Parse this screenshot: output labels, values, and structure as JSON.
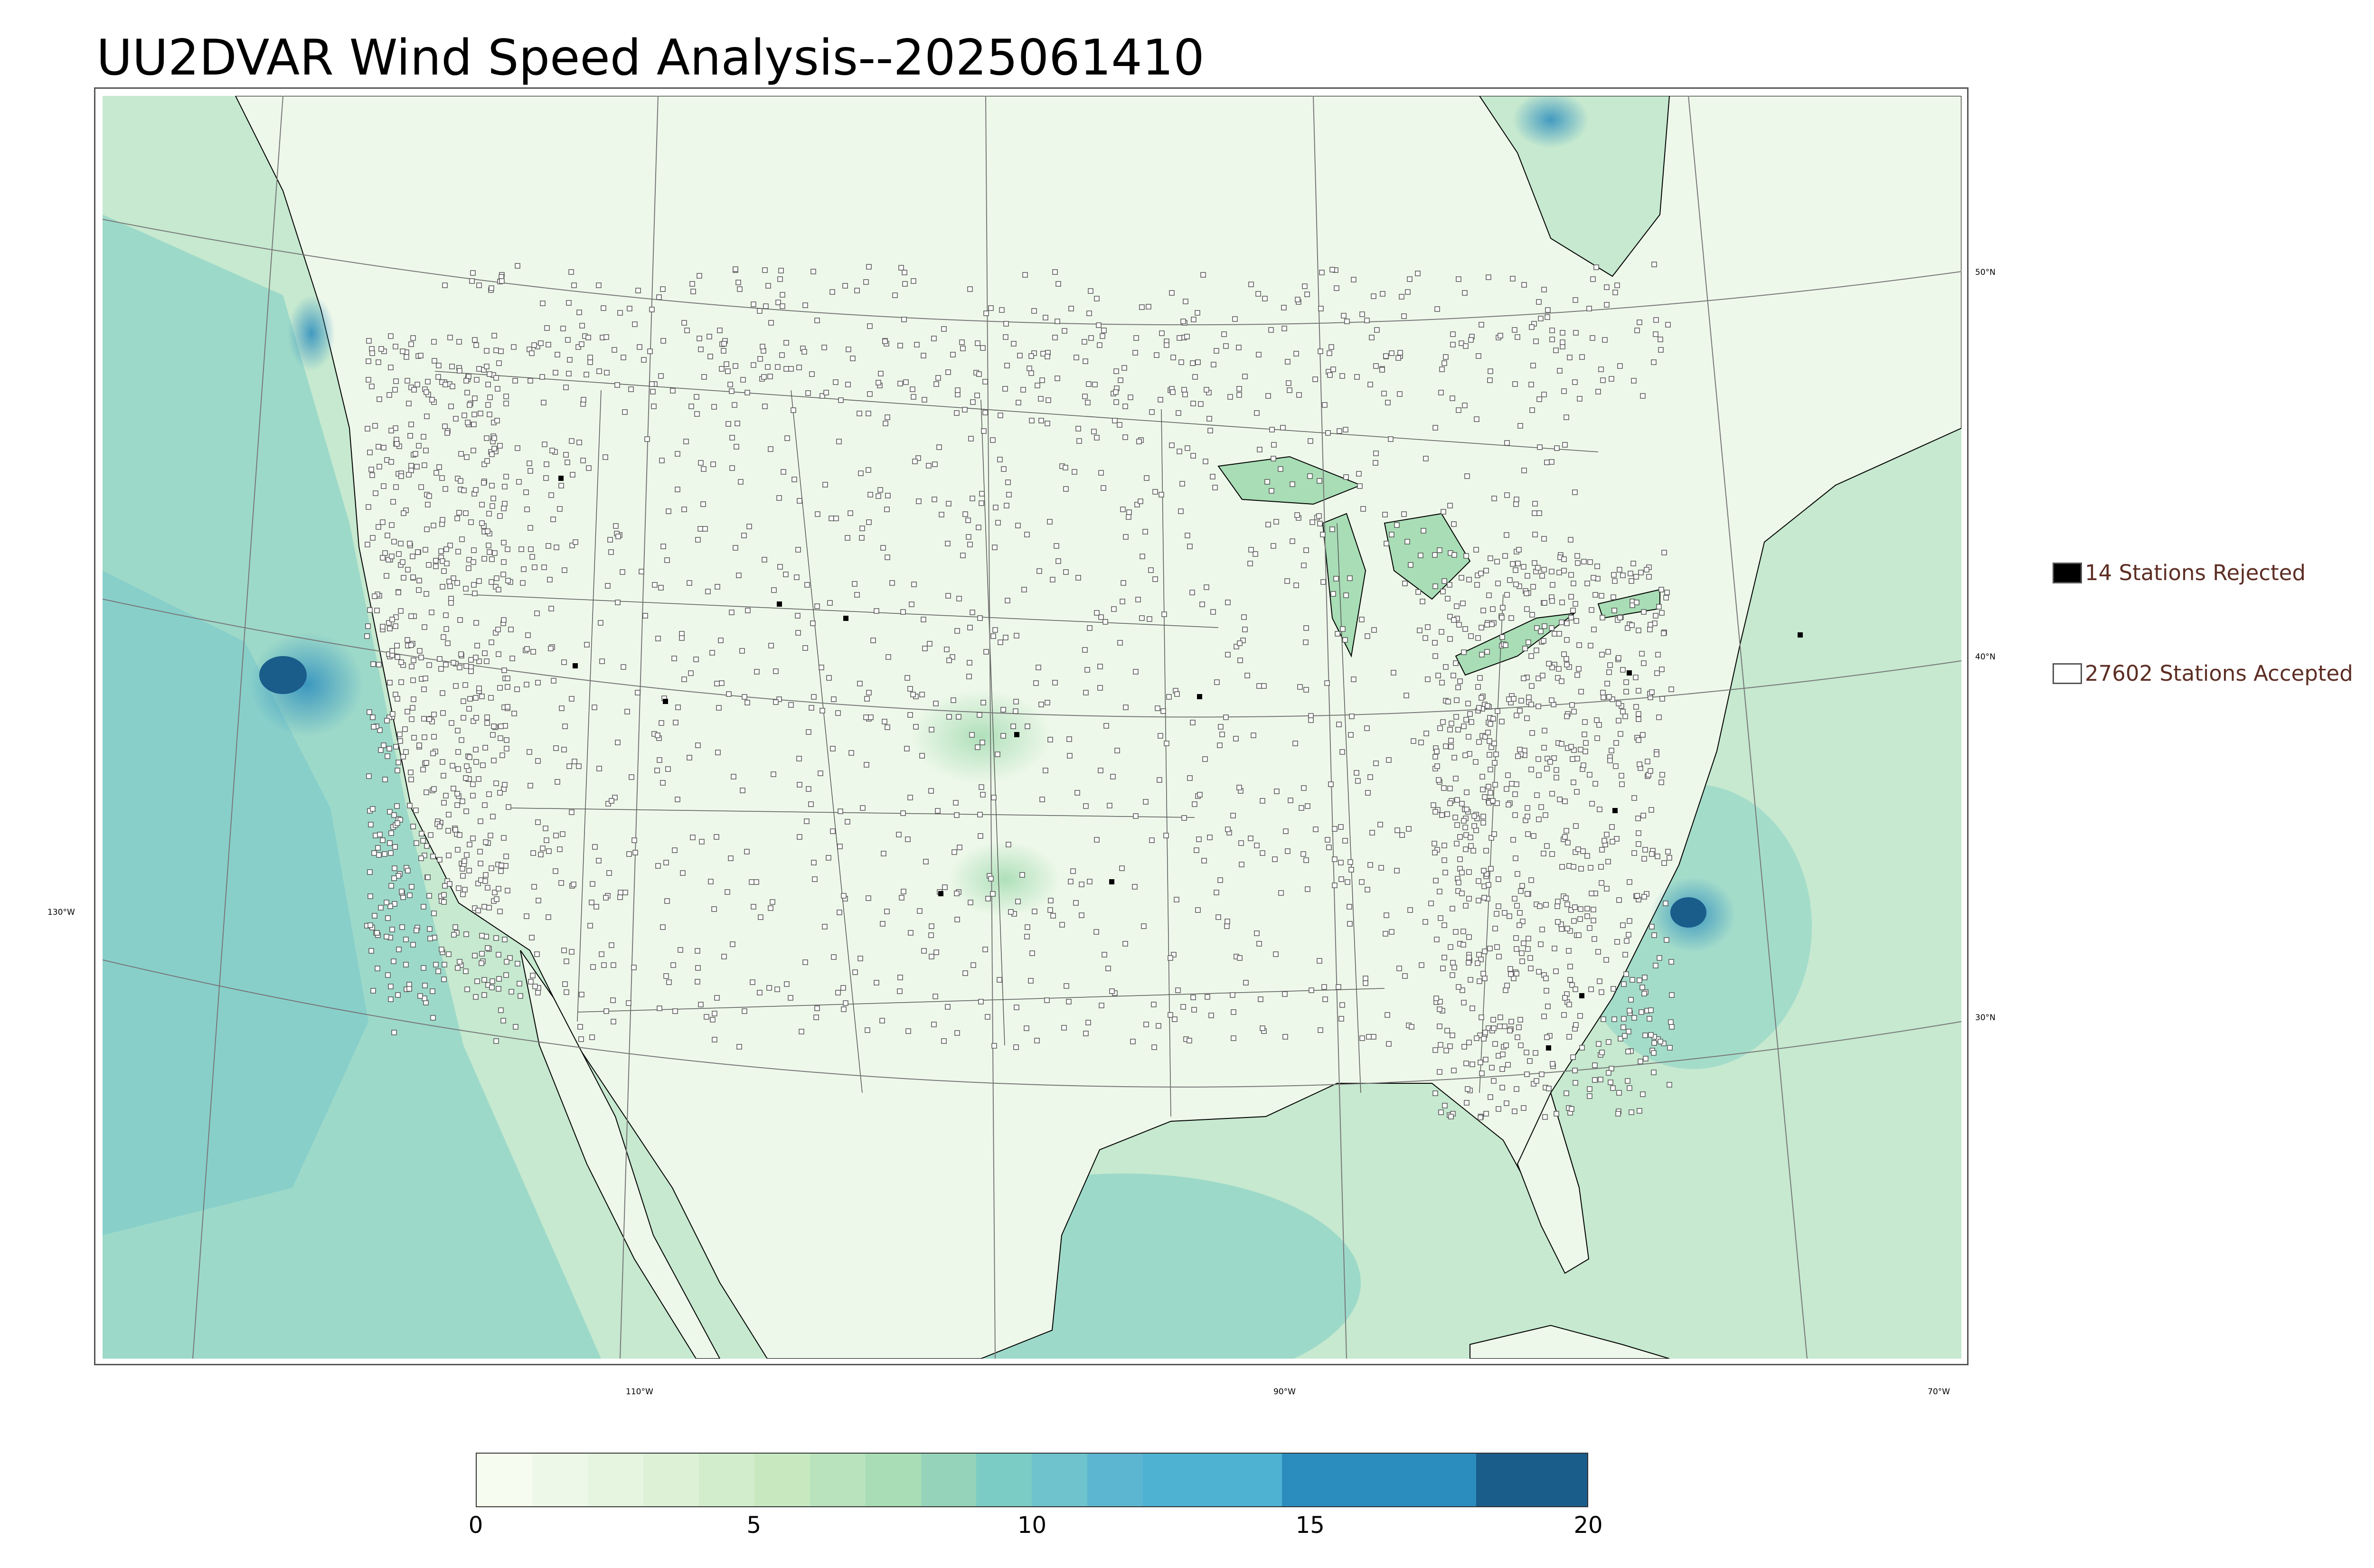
{
  "title": "UU2DVAR Wind Speed Analysis--2025061410",
  "map": {
    "latitude_labels": [
      "50°N",
      "40°N",
      "30°N"
    ],
    "longitude_labels": [
      "130°W",
      "110°W",
      "90°W",
      "70°W"
    ],
    "land_color": "#eef8ea",
    "ocean_color": "#c6e9cf",
    "high_wind_color": "#1f78b4",
    "station_accepted_color": "#ffffff",
    "station_rejected_color": "#000000"
  },
  "legend": {
    "rejected_label": "14 Stations Rejected",
    "accepted_label": "27602 Stations Accepted",
    "text_color": "#5d2e24"
  },
  "colorbar": {
    "ticks": [
      "0",
      "5",
      "10",
      "15",
      "20"
    ],
    "bins": [
      0,
      1,
      2,
      3,
      4,
      5,
      6,
      7,
      8,
      9,
      10,
      11,
      12,
      14.5,
      18,
      20
    ],
    "colors": [
      "#f7fcf0",
      "#eef8e9",
      "#e5f5e0",
      "#dcf1d6",
      "#d2edcc",
      "#c8e9c0",
      "#b8e3bd",
      "#a8ddb5",
      "#95d4bb",
      "#7bccc4",
      "#6ec3cd",
      "#5db6d1",
      "#4eb3d3",
      "#2b8cbe",
      "#1a5c8a"
    ]
  }
}
